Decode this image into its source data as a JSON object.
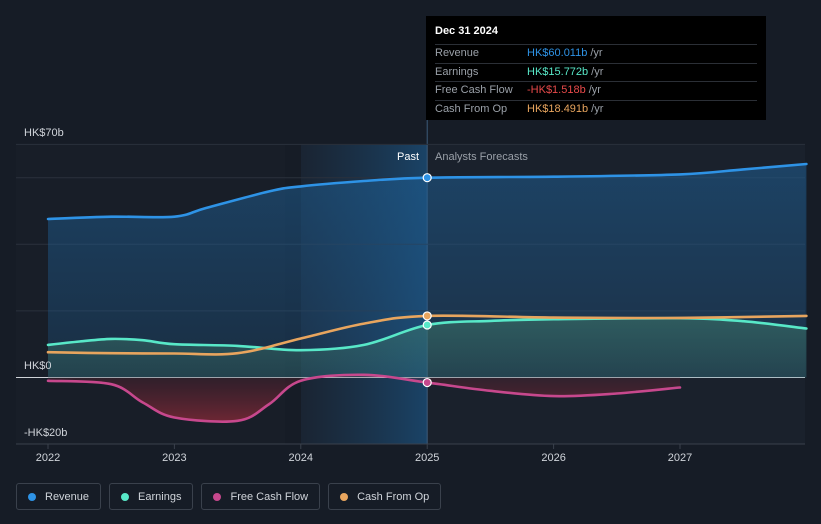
{
  "chart_data": {
    "type": "line",
    "x_ticks": [
      "2022",
      "2023",
      "2024",
      "2025",
      "2026",
      "2027"
    ],
    "y_labels": {
      "top": "HK$70b",
      "zero": "HK$0",
      "bottom": "-HK$20b"
    },
    "ylim": [
      -20,
      70
    ],
    "past_label": "Past",
    "forecast_label": "Analysts Forecasts",
    "divider_x": 2025.0,
    "series": [
      {
        "key": "revenue",
        "name": "Revenue",
        "color": "#2e93e6",
        "area": true,
        "points": [
          [
            2022.0,
            47.6
          ],
          [
            2022.5,
            48.3
          ],
          [
            2023.0,
            48.3
          ],
          [
            2023.25,
            50.9
          ],
          [
            2023.75,
            55.9
          ],
          [
            2024.0,
            57.4
          ],
          [
            2024.5,
            59.0
          ],
          [
            2025.0,
            60.011
          ],
          [
            2026.0,
            60.3
          ],
          [
            2027.0,
            61.0
          ],
          [
            2027.5,
            62.5
          ],
          [
            2028.0,
            64.1
          ]
        ]
      },
      {
        "key": "earnings",
        "name": "Earnings",
        "color": "#58e8c8",
        "area": true,
        "points": [
          [
            2022.0,
            9.8
          ],
          [
            2022.25,
            10.8
          ],
          [
            2022.5,
            11.6
          ],
          [
            2022.75,
            11.2
          ],
          [
            2023.0,
            10.0
          ],
          [
            2023.5,
            9.5
          ],
          [
            2024.0,
            8.2
          ],
          [
            2024.5,
            9.8
          ],
          [
            2025.0,
            15.772
          ],
          [
            2025.5,
            17.0
          ],
          [
            2026.0,
            17.5
          ],
          [
            2027.0,
            17.8
          ],
          [
            2027.5,
            16.9
          ],
          [
            2028.0,
            14.7
          ]
        ]
      },
      {
        "key": "fcf",
        "name": "Free Cash Flow",
        "color": "#c7488d",
        "area": true,
        "points": [
          [
            2022.0,
            -1.0
          ],
          [
            2022.5,
            -2.0
          ],
          [
            2022.75,
            -7.5
          ],
          [
            2023.0,
            -12.0
          ],
          [
            2023.5,
            -13.0
          ],
          [
            2023.75,
            -8.0
          ],
          [
            2024.0,
            -1.0
          ],
          [
            2024.5,
            0.8
          ],
          [
            2025.0,
            -1.518
          ],
          [
            2025.5,
            -4.0
          ],
          [
            2026.0,
            -5.6
          ],
          [
            2026.5,
            -4.8
          ],
          [
            2027.0,
            -3.0
          ]
        ]
      },
      {
        "key": "cfo",
        "name": "Cash From Op",
        "color": "#e8a55e",
        "area": false,
        "points": [
          [
            2022.0,
            7.6
          ],
          [
            2022.5,
            7.3
          ],
          [
            2023.0,
            7.2
          ],
          [
            2023.5,
            7.3
          ],
          [
            2024.0,
            11.7
          ],
          [
            2024.5,
            16.2
          ],
          [
            2025.0,
            18.491
          ],
          [
            2026.0,
            18.0
          ],
          [
            2027.0,
            17.9
          ],
          [
            2028.0,
            18.5
          ]
        ]
      }
    ],
    "highlight_points": [
      {
        "series": "revenue",
        "x": 2025.0,
        "y": 60.011
      },
      {
        "series": "cfo",
        "x": 2025.0,
        "y": 18.491
      },
      {
        "series": "earnings",
        "x": 2025.0,
        "y": 15.772
      },
      {
        "series": "fcf",
        "x": 2025.0,
        "y": -1.518
      }
    ]
  },
  "tooltip": {
    "date": "Dec 31 2024",
    "rows": [
      {
        "label": "Revenue",
        "value": "HK$60.011b",
        "unit": "/yr",
        "color": "#2e93e6"
      },
      {
        "label": "Earnings",
        "value": "HK$15.772b",
        "unit": "/yr",
        "color": "#58e8c8"
      },
      {
        "label": "Free Cash Flow",
        "value": "-HK$1.518b",
        "unit": "/yr",
        "color": "#e84a4a"
      },
      {
        "label": "Cash From Op",
        "value": "HK$18.491b",
        "unit": "/yr",
        "color": "#e8a55e"
      }
    ]
  },
  "legend": [
    {
      "label": "Revenue",
      "color": "#2e93e6"
    },
    {
      "label": "Earnings",
      "color": "#58e8c8"
    },
    {
      "label": "Free Cash Flow",
      "color": "#c7488d"
    },
    {
      "label": "Cash From Op",
      "color": "#e8a55e"
    }
  ]
}
